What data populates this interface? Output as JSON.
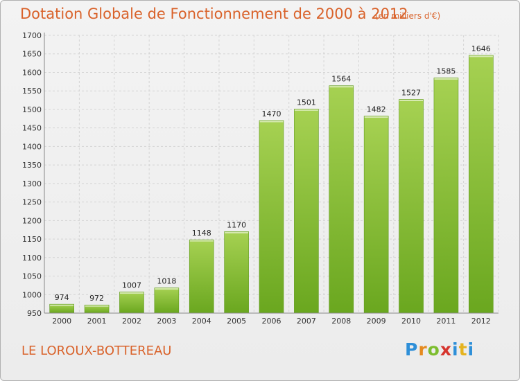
{
  "chart_data": {
    "type": "bar",
    "title": "Dotation Globale de Fonctionnement de 2000 à 2012",
    "subtitle": "(en milliers d'€)",
    "categories": [
      "2000",
      "2001",
      "2002",
      "2003",
      "2004",
      "2005",
      "2006",
      "2007",
      "2008",
      "2009",
      "2010",
      "2011",
      "2012"
    ],
    "values": [
      974,
      972,
      1007,
      1018,
      1148,
      1170,
      1470,
      1501,
      1564,
      1482,
      1527,
      1585,
      1646
    ],
    "ylim": [
      950,
      1700
    ],
    "yticks": [
      950,
      1000,
      1050,
      1100,
      1150,
      1200,
      1250,
      1300,
      1350,
      1400,
      1450,
      1500,
      1550,
      1600,
      1650,
      1700
    ],
    "grid": true,
    "bar_color": "#7ab82e",
    "bar_color_light": "#a6d152"
  },
  "footer": {
    "commune": "LE LOROUX-BOTTEREAU",
    "brand": [
      "P",
      "r",
      "o",
      "x",
      "i",
      "t",
      "i"
    ]
  }
}
